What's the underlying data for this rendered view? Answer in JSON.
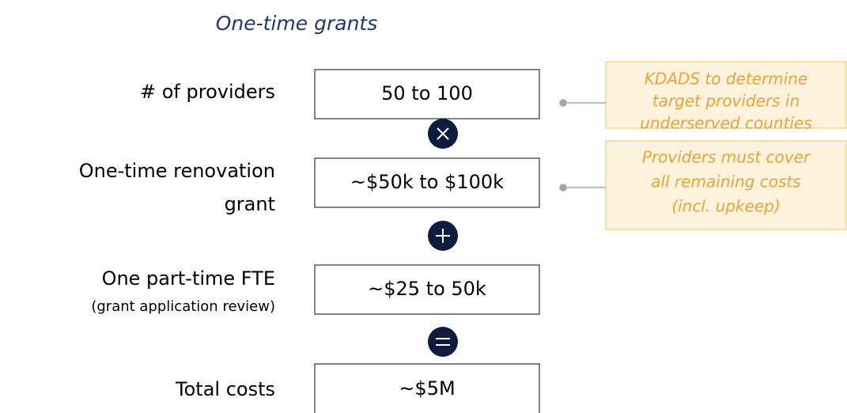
{
  "title": "One-time grants",
  "rows": [
    {
      "label": [
        "# of providers"
      ],
      "value": "50 to 100"
    },
    {
      "label": [
        "One-time renovation",
        "grant"
      ],
      "value": "~$50k to $100k"
    },
    {
      "label": [
        "One part-time FTE"
      ],
      "sublabel": "(grant application review)",
      "value": "~$25 to 50k"
    },
    {
      "label": [
        "Total costs"
      ],
      "value": "~$5M"
    }
  ],
  "notes": [
    {
      "lines": [
        "KDADS to determine",
        "target providers in",
        "underserved counties"
      ]
    },
    {
      "lines": [
        "Providers must cover",
        "all remaining costs",
        "(incl. upkeep)"
      ]
    }
  ]
}
